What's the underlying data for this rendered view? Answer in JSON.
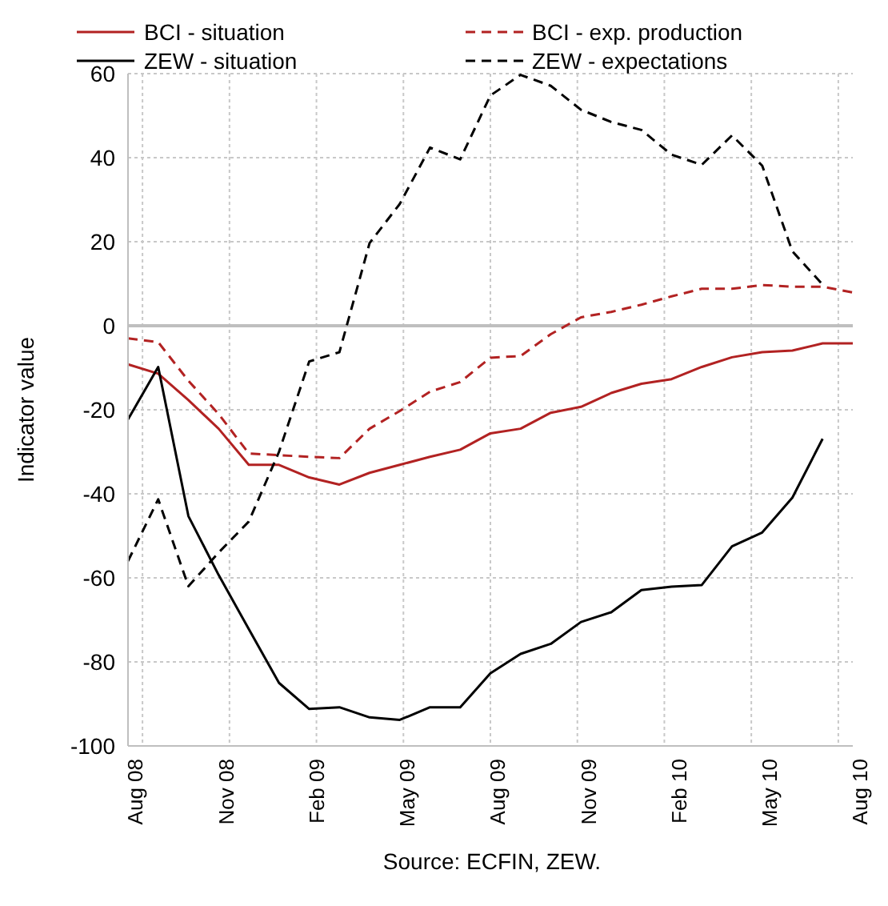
{
  "chart_data": {
    "type": "line",
    "ylabel": "Indicator value",
    "annotations": [
      "Source: ECFIN, ZEW."
    ],
    "categories": [
      "Aug 08",
      null,
      null,
      "Nov 08",
      null,
      null,
      "Feb 09",
      null,
      null,
      "May 09",
      null,
      null,
      "Aug 09",
      null,
      null,
      "Nov 09",
      null,
      null,
      "Feb 10",
      null,
      null,
      "May 10",
      null,
      null,
      "Aug 10"
    ],
    "series": [
      {
        "name": "BCI - situation",
        "color": "#b22222",
        "line_style": "solid",
        "values": [
          -9.2,
          -11.4,
          -17.7,
          -24.5,
          -33.1,
          -33.1,
          -36.1,
          -37.8,
          -35,
          -33.1,
          -31.2,
          -29.5,
          -25.6,
          -24.5,
          -20.7,
          -19.3,
          -16,
          -13.8,
          -12.7,
          -9.8,
          -7.5,
          -6.3,
          -5.9,
          -4.2,
          -4.2
        ]
      },
      {
        "name": "BCI - exp. production",
        "color": "#b22222",
        "line_style": "dashed",
        "values": [
          -3,
          -3.9,
          -13.1,
          -21,
          -30.4,
          -30.8,
          -31.2,
          -31.5,
          -24.5,
          -20.3,
          -15.7,
          -13.4,
          -7.6,
          -7.2,
          -2,
          2,
          3.3,
          5,
          7,
          8.8,
          8.8,
          9.7,
          9.3,
          9.3,
          7.9
        ]
      },
      {
        "name": "ZEW - situation",
        "color": "#000000",
        "line_style": "solid",
        "values": [
          -22.3,
          -9.8,
          -45.3,
          -59.3,
          -72.2,
          -85,
          -91.2,
          -90.8,
          -93.2,
          -93.8,
          -90.8,
          -90.8,
          -82.7,
          -78.1,
          -75.7,
          -70.5,
          -68.2,
          -62.9,
          -62.1,
          -61.7,
          -52.5,
          -49.2,
          -40.9,
          -26.9,
          null
        ]
      },
      {
        "name": "ZEW - expectations",
        "color": "#000000",
        "line_style": "dashed",
        "values": [
          -56,
          -41.3,
          -62,
          -54,
          -46.6,
          -30,
          -8.5,
          -6.3,
          19.7,
          29,
          42.4,
          39.6,
          54.8,
          59.7,
          57.1,
          51.4,
          48.5,
          46.6,
          40.7,
          38.3,
          45.3,
          38.1,
          17.7,
          9.8,
          null
        ]
      }
    ],
    "ylim": [
      -100,
      60
    ],
    "yticks": [
      -100,
      -80,
      -60,
      -40,
      -20,
      0,
      20,
      40,
      60
    ],
    "grid": true,
    "legend": "top",
    "marker": "none",
    "ref_lines": [
      {
        "axis": "y",
        "value": 0,
        "color": "#bfbfbf"
      }
    ]
  }
}
